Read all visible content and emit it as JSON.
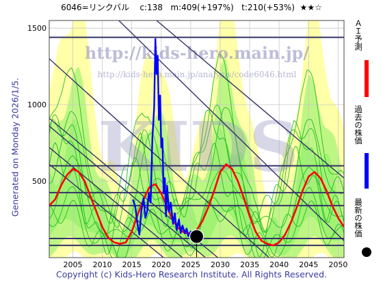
{
  "header": {
    "title": "6046=リンクバル    c:138   m:409(+197%)   t:210(+53%)  ★★☆"
  },
  "side_text": "Generated on Monday 2026/1/5.",
  "watermarks": {
    "line1": "http://kids-hero.main.jp/",
    "line2": "http://kids-hero.main.jp/analysis/code6046.html",
    "big": "KIDS"
  },
  "footer": "Copyright (c) Kids-Hero Research Institute. All Rights Reserved.",
  "legend": [
    {
      "label": "ＡＩ予測",
      "color": "#ff0000"
    },
    {
      "label": "過去の株価",
      "color": "#0000ff"
    },
    {
      "label": "最新の株価",
      "color": "#000000",
      "marker": "dot"
    }
  ],
  "colors": {
    "band_yellow": "#ffff99",
    "band_green": "#88ee66",
    "green_line": "#22bb22",
    "trend_line": "#333366",
    "grid": "#c8c8c8"
  },
  "chart_data": {
    "type": "line",
    "xlim": [
      2001,
      2051
    ],
    "ylim": [
      0,
      1550
    ],
    "x_ticks": [
      2005,
      2010,
      2015,
      2020,
      2025,
      2030,
      2035,
      2040,
      2045,
      2050
    ],
    "y_ticks": [
      500,
      1000,
      1500
    ],
    "horizontal_lines": [
      1440,
      600,
      425,
      340,
      125,
      80
    ],
    "trend_lines": [
      {
        "from": [
          2001,
          1300
        ],
        "to": [
          2038.3,
          0
        ]
      },
      {
        "from": [
          2001,
          910
        ],
        "to": [
          2029.6,
          0
        ]
      },
      {
        "from": [
          2001,
          720
        ],
        "to": [
          2023.6,
          0
        ]
      },
      {
        "from": [
          2001,
          610
        ],
        "to": [
          2020.4,
          0
        ]
      },
      {
        "from": [
          2001,
          860
        ],
        "to": [
          2027.5,
          0
        ]
      },
      {
        "from": [
          2012.8,
          1550
        ],
        "to": [
          2051,
          110
        ]
      },
      {
        "from": [
          2019.2,
          1550
        ],
        "to": [
          2051,
          520
        ]
      }
    ],
    "series": [
      {
        "kind": "prediction",
        "x": [
          2001,
          2002,
          2003,
          2004,
          2005,
          2006,
          2007,
          2008,
          2009,
          2010,
          2011,
          2012,
          2013,
          2014,
          2015,
          2016,
          2017,
          2018,
          2019,
          2020,
          2021,
          2022,
          2023,
          2024,
          2025,
          2026,
          2027,
          2028,
          2029,
          2030,
          2031,
          2032,
          2033,
          2034,
          2035,
          2036,
          2037,
          2038,
          2039,
          2040,
          2041,
          2042,
          2043,
          2044,
          2045,
          2046,
          2047,
          2048,
          2049,
          2050,
          2051
        ],
        "values": [
          340,
          380,
          470,
          540,
          580,
          560,
          500,
          400,
          300,
          200,
          130,
          100,
          90,
          100,
          170,
          280,
          380,
          460,
          480,
          420,
          330,
          240,
          190,
          160,
          160,
          180,
          240,
          330,
          440,
          560,
          610,
          580,
          500,
          390,
          270,
          170,
          110,
          90,
          80,
          100,
          150,
          230,
          330,
          440,
          530,
          560,
          520,
          440,
          340,
          260,
          200
        ]
      },
      {
        "kind": "past_price",
        "x": [
          2015.2,
          2015.6,
          2016.0,
          2016.3,
          2016.6,
          2017.0,
          2017.3,
          2017.6,
          2017.9,
          2018.2,
          2018.5,
          2018.8,
          2019.0,
          2019.2,
          2019.4,
          2019.6,
          2019.8,
          2020.0,
          2020.2,
          2020.4,
          2020.6,
          2020.8,
          2021.0,
          2021.3,
          2021.6,
          2022.0,
          2022.3,
          2022.6,
          2023.0,
          2023.3,
          2023.6,
          2024.0,
          2024.3,
          2024.6,
          2025.0,
          2025.4,
          2025.7,
          2026.0
        ],
        "values": [
          380,
          330,
          210,
          150,
          300,
          390,
          260,
          300,
          420,
          360,
          780,
          980,
          1430,
          1200,
          1320,
          900,
          1060,
          720,
          780,
          420,
          520,
          270,
          470,
          300,
          360,
          220,
          290,
          180,
          250,
          160,
          210,
          160,
          190,
          140,
          170,
          150,
          140,
          138
        ]
      }
    ],
    "latest": {
      "x": 2026.0,
      "y": 138
    }
  }
}
